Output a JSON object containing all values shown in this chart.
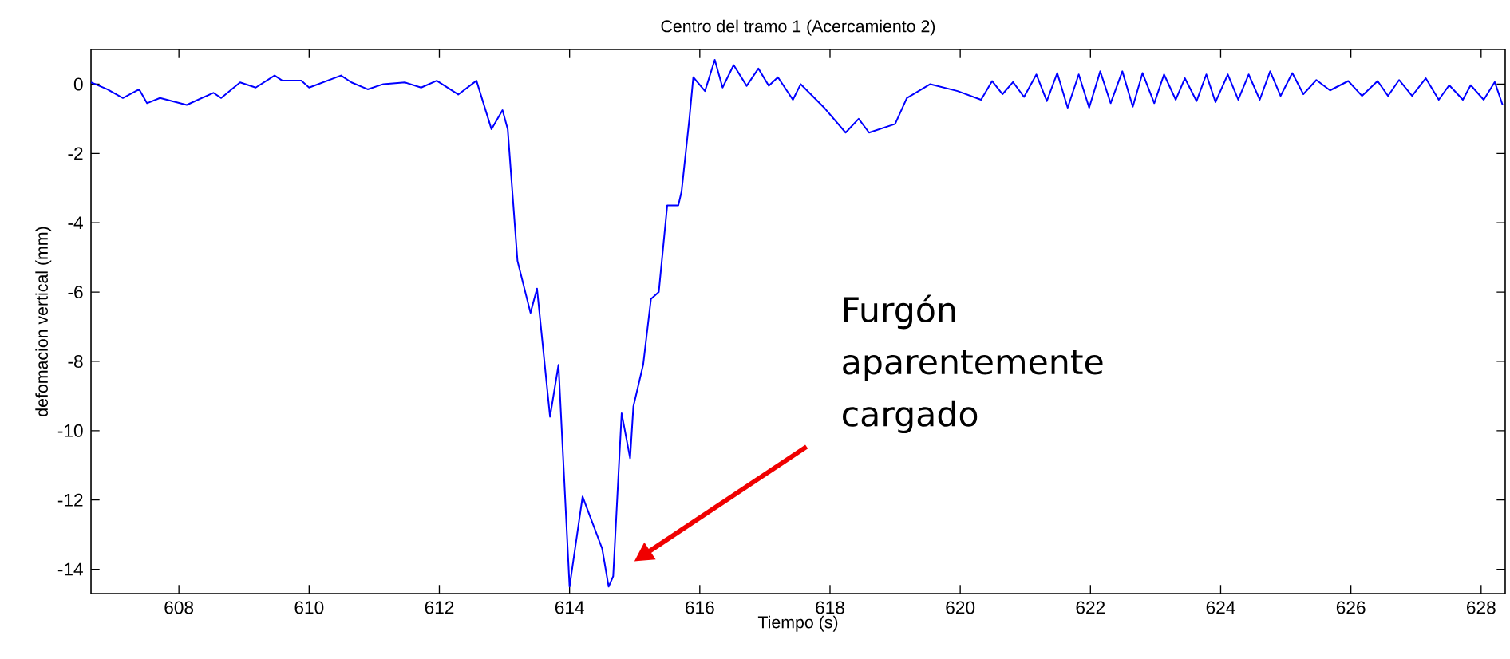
{
  "chart_data": {
    "type": "line",
    "title": "Centro del tramo 1 (Acercamiento 2)",
    "xlabel": "Tiempo (s)",
    "ylabel": "defomacion vertical (mm)",
    "xlim": [
      606.65,
      628.37
    ],
    "ylim": [
      -14.7,
      1
    ],
    "xticks": [
      608,
      610,
      612,
      614,
      616,
      618,
      620,
      622,
      624,
      626,
      628
    ],
    "yticks": [
      -14,
      -12,
      -10,
      -8,
      -6,
      -4,
      -2,
      0
    ],
    "grid": false,
    "marker": "none",
    "line_style": "solid",
    "annotations": [
      "Furgón aparentemente cargado"
    ],
    "series": [
      {
        "color": "#0000ff",
        "x": [
          606.65,
          606.9,
          607.14,
          607.39,
          607.51,
          607.71,
          608.12,
          608.53,
          608.65,
          608.94,
          609.18,
          609.47,
          609.59,
          609.88,
          610.0,
          610.49,
          610.65,
          610.9,
          611.14,
          611.47,
          611.72,
          611.96,
          612.29,
          612.57,
          612.8,
          612.97,
          613.05,
          613.2,
          613.4,
          613.5,
          613.7,
          613.83,
          614.0,
          614.2,
          614.3,
          614.5,
          614.6,
          614.67,
          614.8,
          614.93,
          614.98,
          615.13,
          615.25,
          615.37,
          615.5,
          615.67,
          615.72,
          615.84,
          615.9,
          616.08,
          616.23,
          616.35,
          616.52,
          616.72,
          616.9,
          617.06,
          617.2,
          617.43,
          617.55,
          617.92,
          618.24,
          618.44,
          618.6,
          619.0,
          619.18,
          619.54,
          619.96,
          620.32,
          620.49,
          620.65,
          620.81,
          620.98,
          621.17,
          621.33,
          621.49,
          621.65,
          621.82,
          621.98,
          622.15,
          622.31,
          622.49,
          622.65,
          622.8,
          622.98,
          623.13,
          623.31,
          623.45,
          623.63,
          623.78,
          623.92,
          624.11,
          624.27,
          624.43,
          624.6,
          624.76,
          624.92,
          625.1,
          625.27,
          625.47,
          625.68,
          625.96,
          626.17,
          626.41,
          626.57,
          626.74,
          626.94,
          627.15,
          627.35,
          627.51,
          627.72,
          627.84,
          628.04,
          628.21,
          628.33
        ],
        "values": [
          0.05,
          -0.15,
          -0.4,
          -0.15,
          -0.55,
          -0.4,
          -0.6,
          -0.25,
          -0.4,
          0.05,
          -0.1,
          0.25,
          0.1,
          0.1,
          -0.1,
          0.25,
          0.05,
          -0.15,
          0,
          0.05,
          -0.1,
          0.1,
          -0.3,
          0.1,
          -1.3,
          -0.75,
          -1.3,
          -5.1,
          -6.6,
          -5.9,
          -9.6,
          -8.1,
          -14.5,
          -11.9,
          -12.4,
          -13.4,
          -14.5,
          -14.2,
          -9.5,
          -10.8,
          -9.3,
          -8.1,
          -6.2,
          -6.0,
          -3.5,
          -3.5,
          -3.1,
          -1.0,
          0.2,
          -0.2,
          0.7,
          -0.1,
          0.55,
          -0.05,
          0.45,
          -0.05,
          0.2,
          -0.45,
          0,
          -0.7,
          -1.4,
          -1.0,
          -1.4,
          -1.15,
          -0.4,
          0,
          -0.2,
          -0.45,
          0.09,
          -0.29,
          0.06,
          -0.37,
          0.28,
          -0.49,
          0.32,
          -0.68,
          0.28,
          -0.68,
          0.37,
          -0.55,
          0.37,
          -0.65,
          0.32,
          -0.55,
          0.28,
          -0.45,
          0.17,
          -0.49,
          0.28,
          -0.52,
          0.28,
          -0.45,
          0.28,
          -0.45,
          0.37,
          -0.34,
          0.32,
          -0.29,
          0.12,
          -0.18,
          0.09,
          -0.34,
          0.09,
          -0.34,
          0.12,
          -0.34,
          0.17,
          -0.45,
          -0.03,
          -0.45,
          -0.03,
          -0.45,
          0.06,
          -0.6
        ]
      }
    ]
  }
}
